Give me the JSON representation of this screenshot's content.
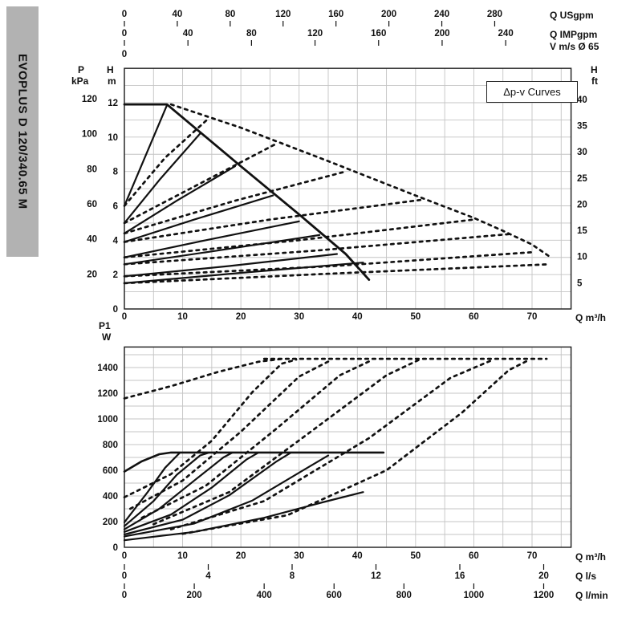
{
  "sidebar": {
    "model": "EVOPLUS D 120/340.65 M"
  },
  "labels": {
    "p": "P",
    "kpa": "kPa",
    "h_left": "H",
    "m": "m",
    "h_right": "H",
    "ft": "ft",
    "q_usgpm": "Q USgpm",
    "q_impgpm": "Q IMPgpm",
    "v_ms": "V m/s Ø 65",
    "q_m3h_top": "Q m³/h",
    "p1": "P1",
    "w": "W",
    "q_m3h_bottom": "Q m³/h",
    "q_ls": "Q l/s",
    "q_lmin": "Q l/min",
    "dpv": "Δp-v Curves"
  },
  "chart_data": [
    {
      "id": "head-flow",
      "type": "line",
      "title": "Δp-v Curves",
      "axes": {
        "bottom": {
          "label": "Q m³/h",
          "ticks": [
            0,
            10,
            20,
            30,
            40,
            50,
            60,
            70
          ],
          "range": [
            0,
            76.7
          ]
        },
        "top_usgpm": {
          "label": "Q USgpm",
          "ticks": [
            0,
            40,
            80,
            120,
            160,
            200,
            240,
            280
          ],
          "to_m3h": 0.2271
        },
        "top_impgpm": {
          "label": "Q IMPgpm",
          "ticks": [
            0,
            40,
            80,
            120,
            160,
            200,
            240
          ],
          "to_m3h": 0.2728
        },
        "top_v": {
          "label": "V m/s Ø 65",
          "ticks": [
            0
          ]
        },
        "left_m": {
          "label": "H m",
          "ticks": [
            0,
            2,
            4,
            6,
            8,
            10,
            12
          ],
          "range": [
            0,
            14
          ]
        },
        "left_kpa": {
          "label": "P kPa",
          "ticks": [
            20,
            40,
            60,
            80,
            100,
            120
          ],
          "to_m": 0.10197
        },
        "right_ft": {
          "label": "H ft",
          "ticks": [
            5,
            10,
            15,
            20,
            25,
            30,
            35,
            40
          ],
          "to_m": 0.3048
        }
      },
      "series": [
        {
          "name": "max-curve-single",
          "style": "solid",
          "width": 2.8,
          "points": [
            [
              0,
              11.9
            ],
            [
              7.3,
              11.9
            ],
            [
              20,
              8.3
            ],
            [
              30,
              5.5
            ],
            [
              38,
              3.2
            ],
            [
              42,
              1.7
            ]
          ]
        },
        {
          "name": "dpv-1",
          "style": "solid",
          "points": [
            [
              0,
              6.0
            ],
            [
              7.3,
              11.85
            ]
          ]
        },
        {
          "name": "dpv-2",
          "style": "solid",
          "points": [
            [
              0,
              5.0
            ],
            [
              6,
              7.5
            ],
            [
              13,
              10.2
            ]
          ]
        },
        {
          "name": "dpv-3",
          "style": "solid",
          "points": [
            [
              0,
              4.4
            ],
            [
              9,
              6.3
            ],
            [
              19,
              8.3
            ]
          ]
        },
        {
          "name": "dpv-4",
          "style": "solid",
          "points": [
            [
              0,
              3.9
            ],
            [
              12,
              5.2
            ],
            [
              25.5,
              6.6
            ]
          ]
        },
        {
          "name": "dpv-5",
          "style": "solid",
          "points": [
            [
              0,
              3.0
            ],
            [
              14,
              4.0
            ],
            [
              30,
              5.1
            ]
          ]
        },
        {
          "name": "dpv-6",
          "style": "solid",
          "points": [
            [
              0,
              2.6
            ],
            [
              16,
              3.4
            ],
            [
              33.5,
              4.3
            ]
          ]
        },
        {
          "name": "dpv-7",
          "style": "solid",
          "points": [
            [
              0,
              1.9
            ],
            [
              18,
              2.5
            ],
            [
              36.5,
              3.2
            ]
          ]
        },
        {
          "name": "min-curve",
          "style": "solid",
          "points": [
            [
              0,
              1.5
            ],
            [
              20,
              2.1
            ],
            [
              41,
              2.7
            ]
          ]
        },
        {
          "name": "max-curve-parallel",
          "style": "dashed",
          "points": [
            [
              8,
              11.9
            ],
            [
              20,
              10.55
            ],
            [
              35,
              8.6
            ],
            [
              50,
              6.6
            ],
            [
              60,
              5.3
            ],
            [
              65,
              4.55
            ],
            [
              70,
              3.75
            ],
            [
              73,
              3.05
            ]
          ]
        },
        {
          "name": "dpv-1-parallel",
          "style": "dashed",
          "points": [
            [
              0,
              6.0
            ],
            [
              7,
              8.8
            ],
            [
              14.5,
              11.1
            ]
          ]
        },
        {
          "name": "dpv-2-parallel",
          "style": "dashed",
          "points": [
            [
              0,
              5.0
            ],
            [
              13,
              7.3
            ],
            [
              26,
              9.6
            ]
          ]
        },
        {
          "name": "dpv-3-parallel",
          "style": "dashed",
          "points": [
            [
              0,
              4.4
            ],
            [
              19,
              6.3
            ],
            [
              38,
              8.0
            ]
          ]
        },
        {
          "name": "dpv-4-parallel",
          "style": "dashed",
          "points": [
            [
              0,
              3.9
            ],
            [
              25,
              5.2
            ],
            [
              51,
              6.35
            ]
          ]
        },
        {
          "name": "dpv-5-parallel",
          "style": "dashed",
          "points": [
            [
              0,
              3.0
            ],
            [
              30,
              4.0
            ],
            [
              60,
              5.2
            ]
          ]
        },
        {
          "name": "dpv-6-parallel",
          "style": "dashed",
          "points": [
            [
              0,
              2.6
            ],
            [
              33,
              3.4
            ],
            [
              66,
              4.35
            ]
          ]
        },
        {
          "name": "dpv-7-parallel",
          "style": "dashed",
          "points": [
            [
              0,
              1.9
            ],
            [
              36,
              2.5
            ],
            [
              70,
              3.3
            ]
          ]
        },
        {
          "name": "min-curve-parallel",
          "style": "dashed",
          "points": [
            [
              0,
              1.5
            ],
            [
              35,
              2.05
            ],
            [
              73,
              2.6
            ]
          ]
        }
      ]
    },
    {
      "id": "power",
      "type": "line",
      "axes": {
        "left_w": {
          "label": "P1 W",
          "ticks": [
            0,
            200,
            400,
            600,
            800,
            1000,
            1200,
            1400
          ],
          "range": [
            0,
            1560
          ]
        },
        "bottom_m3h": {
          "label": "Q m³/h",
          "ticks": [
            0,
            10,
            20,
            30,
            40,
            50,
            60,
            70
          ]
        },
        "bottom_ls": {
          "label": "Q l/s",
          "ticks": [
            0,
            4,
            8,
            12,
            16,
            20
          ],
          "to_m3h": 3.6
        },
        "bottom_lmin": {
          "label": "Q l/min",
          "ticks": [
            0,
            200,
            400,
            600,
            800,
            1000,
            1200
          ],
          "to_m3h": 0.06
        }
      },
      "series": [
        {
          "name": "p1-max-single",
          "style": "solid",
          "width": 2.6,
          "points": [
            [
              0,
              590
            ],
            [
              3,
              670
            ],
            [
              6,
              725
            ],
            [
              8,
              738
            ],
            [
              44.5,
              738
            ]
          ]
        },
        {
          "name": "p1-dpv-1",
          "style": "solid",
          "points": [
            [
              0,
              195
            ],
            [
              4,
              430
            ],
            [
              7,
              620
            ],
            [
              9.5,
              735
            ]
          ]
        },
        {
          "name": "p1-dpv-2",
          "style": "solid",
          "points": [
            [
              0,
              165
            ],
            [
              5,
              360
            ],
            [
              9,
              565
            ],
            [
              13,
              715
            ],
            [
              14.5,
              737
            ]
          ]
        },
        {
          "name": "p1-dpv-3",
          "style": "solid",
          "points": [
            [
              0,
              140
            ],
            [
              6,
              300
            ],
            [
              12,
              520
            ],
            [
              17,
              700
            ],
            [
              18.5,
              737
            ]
          ]
        },
        {
          "name": "p1-dpv-4",
          "style": "solid",
          "points": [
            [
              0,
              120
            ],
            [
              8,
              255
            ],
            [
              15,
              465
            ],
            [
              21,
              685
            ],
            [
              23,
              737
            ]
          ]
        },
        {
          "name": "p1-dpv-5",
          "style": "solid",
          "points": [
            [
              0,
              100
            ],
            [
              10,
              215
            ],
            [
              18,
              405
            ],
            [
              26,
              665
            ],
            [
              28.5,
              735
            ]
          ]
        },
        {
          "name": "p1-dpv-6",
          "style": "solid",
          "points": [
            [
              0,
              85
            ],
            [
              12,
              185
            ],
            [
              22,
              365
            ],
            [
              32,
              635
            ],
            [
              35,
              715
            ]
          ]
        },
        {
          "name": "p1-min",
          "style": "solid",
          "points": [
            [
              0,
              55
            ],
            [
              12,
              120
            ],
            [
              24,
              230
            ],
            [
              34,
              350
            ],
            [
              41,
              430
            ]
          ]
        },
        {
          "name": "p1-max-parallel-rise",
          "style": "dashed",
          "points": [
            [
              0,
              1160
            ],
            [
              8,
              1255
            ],
            [
              16,
              1365
            ],
            [
              23,
              1445
            ],
            [
              27,
              1467
            ]
          ]
        },
        {
          "name": "p1-parallel-plateau",
          "style": "dashed",
          "points": [
            [
              24,
              1468
            ],
            [
              72.5,
              1468
            ]
          ]
        },
        {
          "name": "p1-dpv-1-parallel",
          "style": "dashed",
          "points": [
            [
              0,
              390
            ],
            [
              8,
              570
            ],
            [
              15,
              830
            ],
            [
              22,
              1210
            ],
            [
              27,
              1430
            ],
            [
              29.5,
              1462
            ]
          ]
        },
        {
          "name": "p1-dpv-2-parallel",
          "style": "dashed",
          "points": [
            [
              1,
              300
            ],
            [
              10,
              520
            ],
            [
              20,
              900
            ],
            [
              30,
              1330
            ],
            [
              35.5,
              1458
            ]
          ]
        },
        {
          "name": "p1-dpv-3-parallel",
          "style": "dashed",
          "points": [
            [
              3,
              230
            ],
            [
              14,
              480
            ],
            [
              26,
              920
            ],
            [
              37,
              1340
            ],
            [
              42.5,
              1458
            ]
          ]
        },
        {
          "name": "p1-dpv-4-parallel",
          "style": "dashed",
          "points": [
            [
              5,
              180
            ],
            [
              18,
              430
            ],
            [
              32,
              900
            ],
            [
              45,
              1340
            ],
            [
              50.5,
              1458
            ]
          ]
        },
        {
          "name": "p1-dpv-5-parallel",
          "style": "dashed",
          "points": [
            [
              8,
              140
            ],
            [
              24,
              360
            ],
            [
              42,
              850
            ],
            [
              56,
              1320
            ],
            [
              63,
              1455
            ]
          ]
        },
        {
          "name": "p1-min-parallel",
          "style": "dashed",
          "points": [
            [
              10,
              105
            ],
            [
              28,
              250
            ],
            [
              45,
              600
            ],
            [
              58,
              1050
            ],
            [
              66,
              1380
            ],
            [
              69,
              1448
            ]
          ]
        }
      ]
    }
  ]
}
